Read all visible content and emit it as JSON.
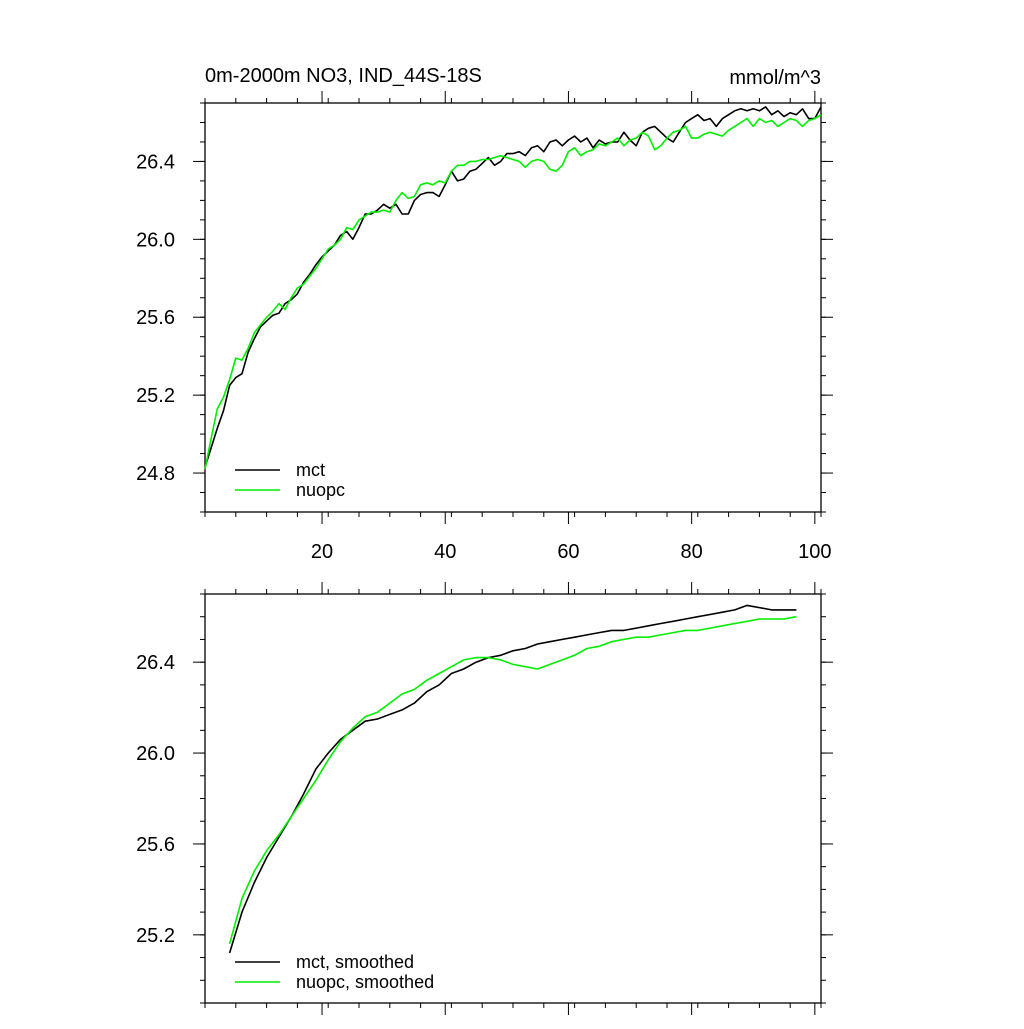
{
  "chart_data": [
    {
      "type": "line",
      "title": "0m-2000m NO3, IND_44S-18S",
      "units": "mmol/m^3",
      "xlim": [
        1,
        101
      ],
      "ylim": [
        24.6,
        26.7
      ],
      "xticks": [
        20,
        40,
        60,
        80,
        100
      ],
      "yticks": [
        24.8,
        25.2,
        25.6,
        26.0,
        26.4
      ],
      "legend": "bottom-left",
      "series": [
        {
          "name": "mct",
          "color": "#000000",
          "x": [
            1,
            2,
            3,
            4,
            5,
            6,
            7,
            8,
            9,
            10,
            11,
            12,
            13,
            14,
            15,
            16,
            17,
            18,
            19,
            20,
            21,
            22,
            23,
            24,
            25,
            26,
            27,
            28,
            29,
            30,
            31,
            32,
            33,
            34,
            35,
            36,
            37,
            38,
            39,
            40,
            41,
            42,
            43,
            44,
            45,
            46,
            47,
            48,
            49,
            50,
            51,
            52,
            53,
            54,
            55,
            56,
            57,
            58,
            59,
            60,
            61,
            62,
            63,
            64,
            65,
            66,
            67,
            68,
            69,
            70,
            71,
            72,
            73,
            74,
            75,
            76,
            77,
            78,
            79,
            80,
            81,
            82,
            83,
            84,
            85,
            86,
            87,
            88,
            89,
            90,
            91,
            92,
            93,
            94,
            95,
            96,
            97,
            98,
            99,
            100,
            101
          ],
          "y": [
            24.83,
            24.93,
            25.03,
            25.12,
            25.25,
            25.29,
            25.31,
            25.42,
            25.49,
            25.55,
            25.58,
            25.61,
            25.62,
            25.67,
            25.69,
            25.72,
            25.78,
            25.82,
            25.87,
            25.91,
            25.94,
            25.97,
            26.02,
            26.04,
            26.0,
            26.06,
            26.13,
            26.13,
            26.15,
            26.18,
            26.16,
            26.18,
            26.13,
            26.13,
            26.2,
            26.23,
            26.24,
            26.24,
            26.22,
            26.28,
            26.35,
            26.3,
            26.31,
            26.35,
            26.36,
            26.39,
            26.42,
            26.38,
            26.4,
            26.44,
            26.44,
            26.45,
            26.43,
            26.47,
            26.48,
            26.45,
            26.5,
            26.51,
            26.48,
            26.51,
            26.53,
            26.5,
            26.52,
            26.47,
            26.51,
            26.49,
            26.5,
            26.5,
            26.55,
            26.51,
            26.48,
            26.55,
            26.57,
            26.58,
            26.55,
            26.52,
            26.5,
            26.55,
            26.6,
            26.62,
            26.64,
            26.61,
            26.62,
            26.58,
            26.62,
            26.64,
            26.66,
            26.67,
            26.66,
            26.67,
            26.66,
            26.68,
            26.64,
            26.66,
            26.63,
            26.65,
            26.64,
            26.67,
            26.62,
            26.62,
            26.68
          ]
        },
        {
          "name": "nuopc",
          "color": "#00ee00",
          "x": [
            1,
            2,
            3,
            4,
            5,
            6,
            7,
            8,
            9,
            10,
            11,
            12,
            13,
            14,
            15,
            16,
            17,
            18,
            19,
            20,
            21,
            22,
            23,
            24,
            25,
            26,
            27,
            28,
            29,
            30,
            31,
            32,
            33,
            34,
            35,
            36,
            37,
            38,
            39,
            40,
            41,
            42,
            43,
            44,
            45,
            46,
            47,
            48,
            49,
            50,
            51,
            52,
            53,
            54,
            55,
            56,
            57,
            58,
            59,
            60,
            61,
            62,
            63,
            64,
            65,
            66,
            67,
            68,
            69,
            70,
            71,
            72,
            73,
            74,
            75,
            76,
            77,
            78,
            79,
            80,
            81,
            82,
            83,
            84,
            85,
            86,
            87,
            88,
            89,
            90,
            91,
            92,
            93,
            94,
            95,
            96,
            97,
            98,
            99,
            100,
            101
          ],
          "y": [
            24.82,
            24.98,
            25.13,
            25.19,
            25.28,
            25.39,
            25.38,
            25.44,
            25.52,
            25.56,
            25.6,
            25.63,
            25.67,
            25.64,
            25.7,
            25.75,
            25.77,
            25.81,
            25.85,
            25.9,
            25.95,
            25.97,
            26.0,
            26.06,
            26.05,
            26.1,
            26.12,
            26.14,
            26.14,
            26.15,
            26.14,
            26.2,
            26.24,
            26.21,
            26.22,
            26.28,
            26.29,
            26.28,
            26.3,
            26.29,
            26.35,
            26.38,
            26.38,
            26.4,
            26.4,
            26.41,
            26.41,
            26.42,
            26.43,
            26.42,
            26.41,
            26.4,
            26.37,
            26.4,
            26.41,
            26.4,
            26.36,
            26.35,
            26.38,
            26.45,
            26.47,
            26.43,
            26.45,
            26.46,
            26.49,
            26.48,
            26.5,
            26.52,
            26.48,
            26.51,
            26.52,
            26.55,
            26.53,
            26.46,
            26.48,
            26.52,
            26.55,
            26.56,
            26.58,
            26.52,
            26.52,
            26.54,
            26.55,
            26.54,
            26.53,
            26.56,
            26.58,
            26.6,
            26.62,
            26.58,
            26.62,
            26.6,
            26.61,
            26.58,
            26.6,
            26.62,
            26.61,
            26.58,
            26.61,
            26.62,
            26.64
          ]
        }
      ]
    },
    {
      "type": "line",
      "title": "",
      "xlim": [
        1,
        101
      ],
      "ylim": [
        24.9,
        26.7
      ],
      "xticks": [
        20,
        40,
        60,
        80,
        100
      ],
      "yticks": [
        25.2,
        25.6,
        26.0,
        26.4
      ],
      "legend": "bottom-left",
      "series": [
        {
          "name": "mct, smoothed",
          "color": "#000000",
          "x": [
            5,
            7,
            9,
            11,
            13,
            15,
            17,
            19,
            21,
            23,
            25,
            27,
            29,
            31,
            33,
            35,
            37,
            39,
            41,
            43,
            45,
            47,
            49,
            51,
            53,
            55,
            57,
            59,
            61,
            63,
            65,
            67,
            69,
            71,
            73,
            75,
            77,
            79,
            81,
            83,
            85,
            87,
            89,
            91,
            93,
            95,
            97
          ],
          "y": [
            25.12,
            25.3,
            25.43,
            25.54,
            25.63,
            25.72,
            25.82,
            25.93,
            26.0,
            26.06,
            26.1,
            26.14,
            26.15,
            26.17,
            26.19,
            26.22,
            26.27,
            26.3,
            26.35,
            26.37,
            26.4,
            26.42,
            26.43,
            26.45,
            26.46,
            26.48,
            26.49,
            26.5,
            26.51,
            26.52,
            26.53,
            26.54,
            26.54,
            26.55,
            26.56,
            26.57,
            26.58,
            26.59,
            26.6,
            26.61,
            26.62,
            26.63,
            26.65,
            26.64,
            26.63,
            26.63,
            26.63
          ]
        },
        {
          "name": "nuopc, smoothed",
          "color": "#00ee00",
          "x": [
            5,
            7,
            9,
            11,
            13,
            15,
            17,
            19,
            21,
            23,
            25,
            27,
            29,
            31,
            33,
            35,
            37,
            39,
            41,
            43,
            45,
            47,
            49,
            51,
            53,
            55,
            57,
            59,
            61,
            63,
            65,
            67,
            69,
            71,
            73,
            75,
            77,
            79,
            81,
            83,
            85,
            87,
            89,
            91,
            93,
            95,
            97
          ],
          "y": [
            25.16,
            25.36,
            25.48,
            25.57,
            25.64,
            25.72,
            25.8,
            25.88,
            25.97,
            26.05,
            26.11,
            26.16,
            26.18,
            26.22,
            26.26,
            26.28,
            26.32,
            26.35,
            26.38,
            26.41,
            26.42,
            26.42,
            26.41,
            26.39,
            26.38,
            26.37,
            26.39,
            26.41,
            26.43,
            26.46,
            26.47,
            26.49,
            26.5,
            26.51,
            26.51,
            26.52,
            26.53,
            26.54,
            26.54,
            26.55,
            26.56,
            26.57,
            26.58,
            26.59,
            26.59,
            26.59,
            26.6
          ]
        }
      ]
    }
  ]
}
